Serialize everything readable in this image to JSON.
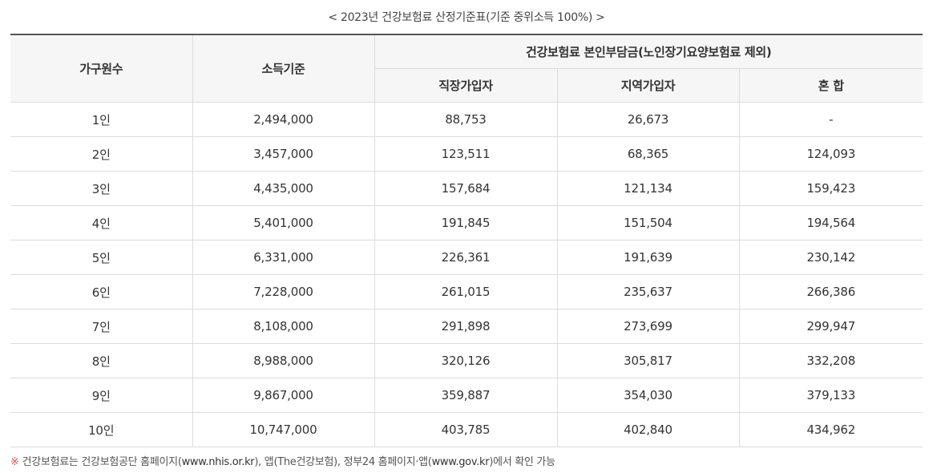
{
  "caption": "< 2023년 건강보험료 산정기준표(기준 중위소득 100%) >",
  "table": {
    "headers": {
      "household": "가구원수",
      "income": "소득기준",
      "premium_group": "건강보험료 본인부담금(노인장기요양보험료 제외)",
      "employee": "직장가입자",
      "regional": "지역가입자",
      "mixed": "혼 합"
    },
    "rows": [
      {
        "household": "1인",
        "income": "2,494,000",
        "employee": "88,753",
        "regional": "26,673",
        "mixed": "-"
      },
      {
        "household": "2인",
        "income": "3,457,000",
        "employee": "123,511",
        "regional": "68,365",
        "mixed": "124,093"
      },
      {
        "household": "3인",
        "income": "4,435,000",
        "employee": "157,684",
        "regional": "121,134",
        "mixed": "159,423"
      },
      {
        "household": "4인",
        "income": "5,401,000",
        "employee": "191,845",
        "regional": "151,504",
        "mixed": "194,564"
      },
      {
        "household": "5인",
        "income": "6,331,000",
        "employee": "226,361",
        "regional": "191,639",
        "mixed": "230,142"
      },
      {
        "household": "6인",
        "income": "7,228,000",
        "employee": "261,015",
        "regional": "235,637",
        "mixed": "266,386"
      },
      {
        "household": "7인",
        "income": "8,108,000",
        "employee": "291,898",
        "regional": "273,699",
        "mixed": "299,947"
      },
      {
        "household": "8인",
        "income": "8,988,000",
        "employee": "320,126",
        "regional": "305,817",
        "mixed": "332,208"
      },
      {
        "household": "9인",
        "income": "9,867,000",
        "employee": "359,887",
        "regional": "354,030",
        "mixed": "379,133"
      },
      {
        "household": "10인",
        "income": "10,747,000",
        "employee": "403,785",
        "regional": "402,840",
        "mixed": "434,962"
      }
    ]
  },
  "note": {
    "mark": "※",
    "text_1": "건강보험료는 건강보험공단 홈페이지(",
    "link_1": "www.nhis.or.kr",
    "text_2": "), 앱(The건강보험), 정부24 홈페이지·앱(",
    "link_2": "www.gov.kr",
    "text_3": ")에서 확인 가능"
  },
  "colors": {
    "header_bg": "#f6f6f6",
    "border": "#dcdcdc",
    "top_border": "#555555",
    "note_mark": "#d9534f"
  }
}
